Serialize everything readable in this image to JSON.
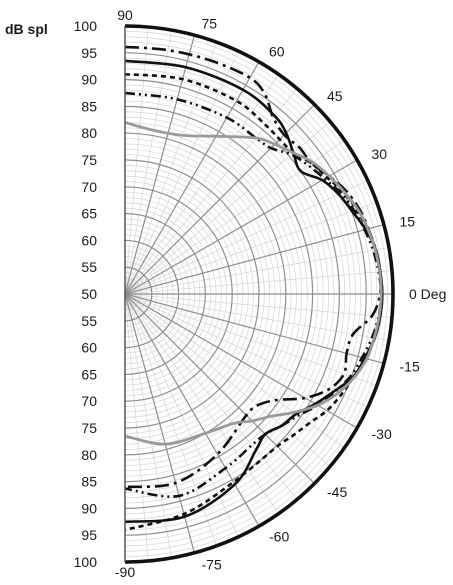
{
  "chart_data": {
    "type": "line",
    "subtype": "polar-half",
    "title": "",
    "unit_label": "dB spl",
    "radial_range": [
      50,
      100
    ],
    "radial_ticks_major": [
      55,
      60,
      65,
      70,
      75,
      80,
      85,
      90,
      95
    ],
    "radial_ticks_minor_step": 1,
    "left_axis_labels": [
      "100",
      "95",
      "90",
      "85",
      "80",
      "75",
      "70",
      "65",
      "60",
      "55",
      "50",
      "55",
      "60",
      "65",
      "70",
      "75",
      "80",
      "85",
      "90",
      "95",
      "100"
    ],
    "angle_range": [
      -90,
      90
    ],
    "angle_grid_major_step": 15,
    "angle_grid_minor_step": 5,
    "angle_tick_labels": [
      {
        "angle": 90,
        "text": "90"
      },
      {
        "angle": 75,
        "text": "75"
      },
      {
        "angle": 60,
        "text": "60"
      },
      {
        "angle": 45,
        "text": "45"
      },
      {
        "angle": 30,
        "text": "30"
      },
      {
        "angle": 15,
        "text": "15"
      },
      {
        "angle": 0,
        "text": "0 Deg"
      },
      {
        "angle": -15,
        "text": "-15"
      },
      {
        "angle": -30,
        "text": "-30"
      },
      {
        "angle": -45,
        "text": "-45"
      },
      {
        "angle": -60,
        "text": "-60"
      },
      {
        "angle": -75,
        "text": "-75"
      },
      {
        "angle": -90,
        "text": "-90"
      }
    ],
    "grid": true,
    "series": [
      {
        "style": {
          "color": "#111111",
          "dash": "",
          "width": 2.6
        },
        "angles": [
          90,
          75,
          60,
          50,
          45,
          40,
          35,
          30,
          25,
          20,
          15,
          10,
          5,
          0,
          -5,
          -10,
          -15,
          -20,
          -25,
          -30,
          -35,
          -40,
          -45,
          -50,
          -60,
          -75,
          -90
        ],
        "values": [
          93.5,
          93.8,
          94,
          93.4,
          92.5,
          91,
          90,
          92.5,
          94,
          95.1,
          96.5,
          97.5,
          97.8,
          98,
          97.8,
          97.3,
          96.3,
          95.3,
          93,
          91,
          89,
          88.2,
          87,
          88,
          91,
          93,
          92.5
        ]
      },
      {
        "style": {
          "color": "#111111",
          "dash": "14 5 3 5",
          "width": 2.6
        },
        "angles": [
          90,
          80,
          70,
          60,
          55,
          50,
          45,
          40,
          35,
          30,
          25,
          20,
          15,
          10,
          5,
          0,
          -5,
          -10,
          -15,
          -20,
          -25,
          -30,
          -35,
          -40,
          -45,
          -60,
          -75,
          -90
        ],
        "values": [
          96.1,
          96.2,
          96.4,
          96.6,
          95.5,
          93,
          92,
          92.5,
          92.5,
          94,
          95.5,
          96.5,
          97,
          97.5,
          97.8,
          97.6,
          96.3,
          93.2,
          92.8,
          93.5,
          92,
          88.8,
          84.5,
          82.3,
          82,
          84.5,
          86.5,
          86
        ]
      },
      {
        "style": {
          "color": "#111111",
          "dash": "5 4",
          "width": 2.6
        },
        "angles": [
          90,
          75,
          60,
          50,
          45,
          40,
          35,
          30,
          25,
          20,
          15,
          10,
          5,
          0,
          -5,
          -10,
          -15,
          -20,
          -25,
          -30,
          -35,
          -40,
          -45,
          -60,
          -75,
          -90
        ],
        "values": [
          91,
          91.5,
          91.6,
          91,
          90.8,
          91,
          92.5,
          93.5,
          95,
          96,
          96.8,
          97.5,
          97.8,
          98,
          97.8,
          97.3,
          96.5,
          95.4,
          94.5,
          93.5,
          92,
          91,
          90.2,
          90.5,
          92.5,
          94
        ]
      },
      {
        "style": {
          "color": "#111111",
          "dash": "10 4 2 4 2 4",
          "width": 2.6
        },
        "angles": [
          90,
          75,
          60,
          50,
          45,
          40,
          35,
          30,
          25,
          20,
          15,
          10,
          5,
          0,
          -5,
          -10,
          -15,
          -20,
          -25,
          -30,
          -35,
          -40,
          -45,
          -50,
          -60,
          -75,
          -90
        ],
        "values": [
          87.5,
          87.6,
          88,
          88,
          88.5,
          90.5,
          91.8,
          93,
          94.5,
          95.5,
          96.3,
          97,
          97.5,
          97.8,
          97.5,
          96.8,
          95.8,
          94.8,
          93.2,
          91.5,
          89.5,
          88.2,
          87,
          86.8,
          87.5,
          89,
          86.3
        ]
      },
      {
        "style": {
          "color": "#9a9a9a",
          "dash": "",
          "width": 2.8
        },
        "angles": [
          90,
          80,
          70,
          60,
          50,
          45,
          40,
          35,
          30,
          25,
          20,
          15,
          10,
          5,
          0,
          -5,
          -10,
          -15,
          -20,
          -25,
          -30,
          -35,
          -40,
          -45,
          -50,
          -60,
          -75,
          -90
        ],
        "values": [
          82,
          81,
          81.5,
          84,
          88,
          89.5,
          91,
          92.8,
          94,
          95.1,
          96.2,
          96.9,
          97.4,
          97.7,
          97.8,
          97.6,
          97.2,
          96.7,
          95.5,
          93.8,
          91.5,
          88.5,
          85.5,
          83.5,
          81.5,
          80,
          79,
          76.5
        ]
      }
    ]
  }
}
